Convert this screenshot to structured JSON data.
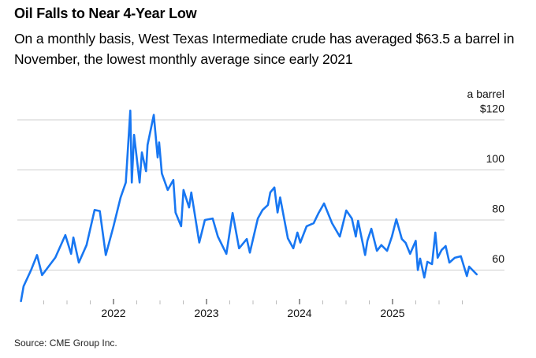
{
  "chart_data": {
    "type": "line",
    "title": "Oil Falls to Near 4-Year Low",
    "subtitle": "On a monthly basis, West Texas Intermediate crude has averaged $63.5 a barrel in November, the lowest monthly average since early 2021",
    "ylabel": "a barrel",
    "ylim": [
      60,
      120
    ],
    "y_ticks": [
      {
        "value": 120,
        "label": "$120"
      },
      {
        "value": 100,
        "label": "100"
      },
      {
        "value": 80,
        "label": "80"
      },
      {
        "value": 60,
        "label": "60"
      }
    ],
    "x_ticks": [
      "2022",
      "2023",
      "2024",
      "2025"
    ],
    "grid": true,
    "color": "#1877f2",
    "series": [
      {
        "points": [
          [
            "2021-01-03",
            47.6
          ],
          [
            "2021-01-13",
            53.5
          ],
          [
            "2021-02-12",
            60
          ],
          [
            "2021-03-05",
            66
          ],
          [
            "2021-03-25",
            58
          ],
          [
            "2021-05-16",
            65
          ],
          [
            "2021-06-25",
            74
          ],
          [
            "2021-07-17",
            66.5
          ],
          [
            "2021-07-26",
            73
          ],
          [
            "2021-08-17",
            63
          ],
          [
            "2021-09-17",
            70
          ],
          [
            "2021-10-18",
            84
          ],
          [
            "2021-11-08",
            83.6
          ],
          [
            "2021-12-01",
            66
          ],
          [
            "2022-01-01",
            77.5
          ],
          [
            "2022-01-29",
            89
          ],
          [
            "2022-02-19",
            95
          ],
          [
            "2022-03-06",
            123.7
          ],
          [
            "2022-03-12",
            95
          ],
          [
            "2022-03-21",
            114
          ],
          [
            "2022-04-12",
            95
          ],
          [
            "2022-04-21",
            107
          ],
          [
            "2022-05-07",
            99.5
          ],
          [
            "2022-05-13",
            110
          ],
          [
            "2022-06-07",
            122
          ],
          [
            "2022-06-22",
            105
          ],
          [
            "2022-06-28",
            111
          ],
          [
            "2022-07-08",
            98.6
          ],
          [
            "2022-08-01",
            92
          ],
          [
            "2022-08-23",
            96
          ],
          [
            "2022-09-01",
            83
          ],
          [
            "2022-09-23",
            77.5
          ],
          [
            "2022-10-02",
            92
          ],
          [
            "2022-10-24",
            85
          ],
          [
            "2022-11-02",
            91
          ],
          [
            "2022-12-03",
            71
          ],
          [
            "2022-12-25",
            80
          ],
          [
            "2023-01-25",
            80.6
          ],
          [
            "2023-02-15",
            73.4
          ],
          [
            "2023-03-18",
            66.5
          ],
          [
            "2023-04-12",
            82.8
          ],
          [
            "2023-05-07",
            68.7
          ],
          [
            "2023-06-07",
            72.4
          ],
          [
            "2023-06-19",
            67
          ],
          [
            "2023-07-20",
            80.6
          ],
          [
            "2023-08-08",
            84
          ],
          [
            "2023-08-29",
            86
          ],
          [
            "2023-09-08",
            91
          ],
          [
            "2023-09-24",
            93
          ],
          [
            "2023-10-06",
            83
          ],
          [
            "2023-10-16",
            89
          ],
          [
            "2023-11-09",
            76.5
          ],
          [
            "2023-11-16",
            72.7
          ],
          [
            "2023-12-07",
            68.7
          ],
          [
            "2023-12-23",
            75
          ],
          [
            "2024-01-04",
            71
          ],
          [
            "2024-01-29",
            77.5
          ],
          [
            "2024-02-26",
            78.7
          ],
          [
            "2024-03-15",
            82.8
          ],
          [
            "2024-04-06",
            86.6
          ],
          [
            "2024-05-07",
            78.7
          ],
          [
            "2024-06-07",
            73.4
          ],
          [
            "2024-07-02",
            83.8
          ],
          [
            "2024-07-24",
            80.6
          ],
          [
            "2024-08-09",
            73.4
          ],
          [
            "2024-08-18",
            79.7
          ],
          [
            "2024-09-15",
            66
          ],
          [
            "2024-09-24",
            71.7
          ],
          [
            "2024-10-09",
            76.5
          ],
          [
            "2024-10-31",
            67.7
          ],
          [
            "2024-11-18",
            70
          ],
          [
            "2024-12-10",
            67.7
          ],
          [
            "2024-12-29",
            73.4
          ],
          [
            "2025-01-16",
            80.3
          ],
          [
            "2025-02-07",
            72.4
          ],
          [
            "2025-02-22",
            70.9
          ],
          [
            "2025-03-09",
            66.5
          ],
          [
            "2025-03-31",
            71.7
          ],
          [
            "2025-04-09",
            60
          ],
          [
            "2025-04-18",
            64.6
          ],
          [
            "2025-05-04",
            57
          ],
          [
            "2025-05-16",
            63.3
          ],
          [
            "2025-06-04",
            62.4
          ],
          [
            "2025-06-17",
            75
          ],
          [
            "2025-06-26",
            64.9
          ],
          [
            "2025-07-11",
            68
          ],
          [
            "2025-07-27",
            69.6
          ],
          [
            "2025-08-11",
            63
          ],
          [
            "2025-09-02",
            64.9
          ],
          [
            "2025-09-26",
            65.5
          ],
          [
            "2025-10-19",
            57.6
          ],
          [
            "2025-10-28",
            61.4
          ],
          [
            "2025-11-27",
            58.3
          ]
        ]
      }
    ],
    "source": "Source: CME Group Inc."
  }
}
